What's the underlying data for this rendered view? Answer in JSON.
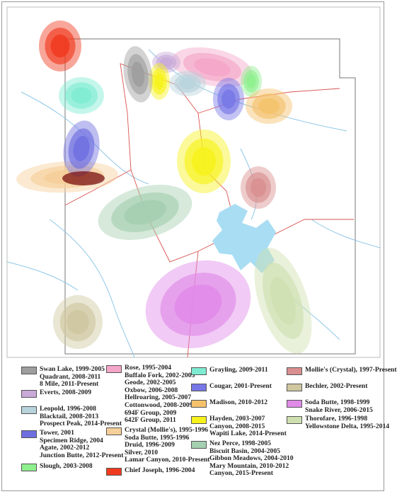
{
  "legend": {
    "columns": [
      [
        {
          "color": "#9e9e9e",
          "lines": [
            "Swan Lake, 1999-2005",
            "Quadrant, 2008-2011",
            "8 Mile, 2011-Present"
          ]
        },
        {
          "color": "#c8a9d8",
          "lines": [
            "Everts, 2008-2009"
          ]
        },
        {
          "color": "#b7d3dc",
          "lines": [
            "Leopold, 1996-2008",
            "Blacktail, 2008-2013",
            "Prospect Peak, 2014-Present"
          ]
        },
        {
          "color": "#6f6fe0",
          "lines": [
            "Tower, 2001",
            "Specimen Ridge, 2004",
            "Agate, 2002-2012",
            "Junction Butte, 2012-Present"
          ]
        },
        {
          "color": "#8ef08e",
          "lines": [
            "Slough, 2003-2008"
          ]
        }
      ],
      [
        {
          "color": "#f4a6c8",
          "lines": [
            "Rose, 1995-2004",
            "Buffalo Fork, 2002-2003",
            "Geode, 2002-2005",
            "Oxbow, 2006-2008",
            "Hellroaring, 2005-2007",
            "Cottonwood, 2008-2009",
            "694F Group, 2009",
            "642F Group, 2011"
          ]
        },
        {
          "color": "#f6cf99",
          "lines": [
            "Crystal (Mollie's), 1995-1996",
            "Soda Butte, 1995-1996",
            "Druid, 1996-2009",
            "Silver, 2010",
            "Lamar Canyon, 2010-Present"
          ]
        },
        {
          "color": "#f03a1e",
          "lines": [
            "Chief Joseph, 1996-2004"
          ]
        }
      ],
      [
        {
          "color": "#7fecd2",
          "lines": [
            "Grayling, 2009-2011"
          ]
        },
        {
          "color": "#7777e6",
          "lines": [
            "Cougar, 2001-Present"
          ]
        },
        {
          "color": "#f5c26b",
          "lines": [
            "Madison, 2010-2012"
          ]
        },
        {
          "color": "#f7f21c",
          "lines": [
            "Hayden, 2003-2007",
            "Canyon, 2008-2015",
            "Wapiti Lake, 2014-Present"
          ]
        },
        {
          "color": "#a4cfb0",
          "lines": [
            "Nez Perce, 1998-2005",
            "Biscuit Basin, 2004-2005",
            "Gibbon Meadows, 2004-2010",
            "Mary Mountain, 2010-2012",
            "Canyon, 2015-Present"
          ]
        }
      ],
      [
        {
          "color": "#d98f8f",
          "lines": [
            "Mollie's (Crystal), 1997-Present"
          ]
        },
        {
          "color": "#cfc7a0",
          "lines": [
            "Bechler, 2002-Present"
          ]
        },
        {
          "color": "#e08ae8",
          "lines": [
            "Soda Butte, 1998-1999",
            "Snake River, 2006-2015"
          ]
        },
        {
          "color": "#cfe0b0",
          "lines": [
            "Thorofare, 1996-1998",
            "Yellowstone Delta, 1995-2014"
          ]
        }
      ]
    ]
  }
}
